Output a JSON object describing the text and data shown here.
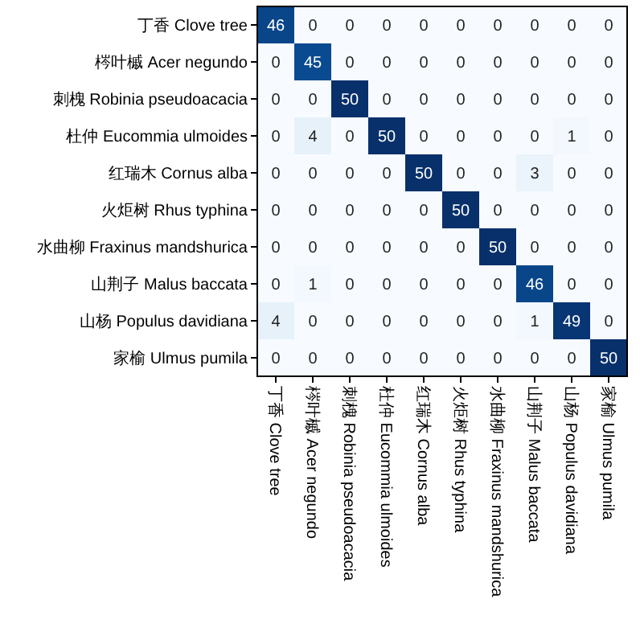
{
  "chart_data": {
    "type": "heatmap",
    "categories": [
      "丁香 Clove tree",
      "梣叶槭 Acer negundo",
      "刺槐 Robinia pseudoacacia",
      "杜仲 Eucommia ulmoides",
      "红瑞木 Cornus alba",
      "火炬树 Rhus typhina",
      "水曲柳 Fraxinus mandshurica",
      "山荆子 Malus baccata",
      "山杨 Populus davidiana",
      "家榆 Ulmus pumila"
    ],
    "y_categories": [
      "丁香 Clove tree",
      "梣叶槭 Acer negundo",
      "刺槐 Robinia pseudoacacia",
      "杜仲 Eucommia ulmoides",
      "红瑞木 Cornus alba",
      "火炬树 Rhus typhina",
      "水曲柳 Fraxinus mandshurica",
      "山荆子 Malus baccata",
      "山杨 Populus davidiana",
      "家榆 Ulmus pumila"
    ],
    "cells": [
      [
        46,
        0,
        0,
        0,
        0,
        0,
        0,
        0,
        0,
        0
      ],
      [
        0,
        45,
        0,
        0,
        0,
        0,
        0,
        0,
        0,
        0
      ],
      [
        0,
        0,
        50,
        0,
        0,
        0,
        0,
        0,
        0,
        0
      ],
      [
        0,
        4,
        0,
        50,
        0,
        0,
        0,
        0,
        1,
        0
      ],
      [
        0,
        0,
        0,
        0,
        50,
        0,
        0,
        3,
        0,
        0
      ],
      [
        0,
        0,
        0,
        0,
        0,
        50,
        0,
        0,
        0,
        0
      ],
      [
        0,
        0,
        0,
        0,
        0,
        0,
        50,
        0,
        0,
        0
      ],
      [
        0,
        1,
        0,
        0,
        0,
        0,
        0,
        46,
        0,
        0
      ],
      [
        4,
        0,
        0,
        0,
        0,
        0,
        0,
        1,
        49,
        0
      ],
      [
        0,
        0,
        0,
        0,
        0,
        0,
        0,
        0,
        0,
        50
      ]
    ],
    "data_labels": true
  }
}
